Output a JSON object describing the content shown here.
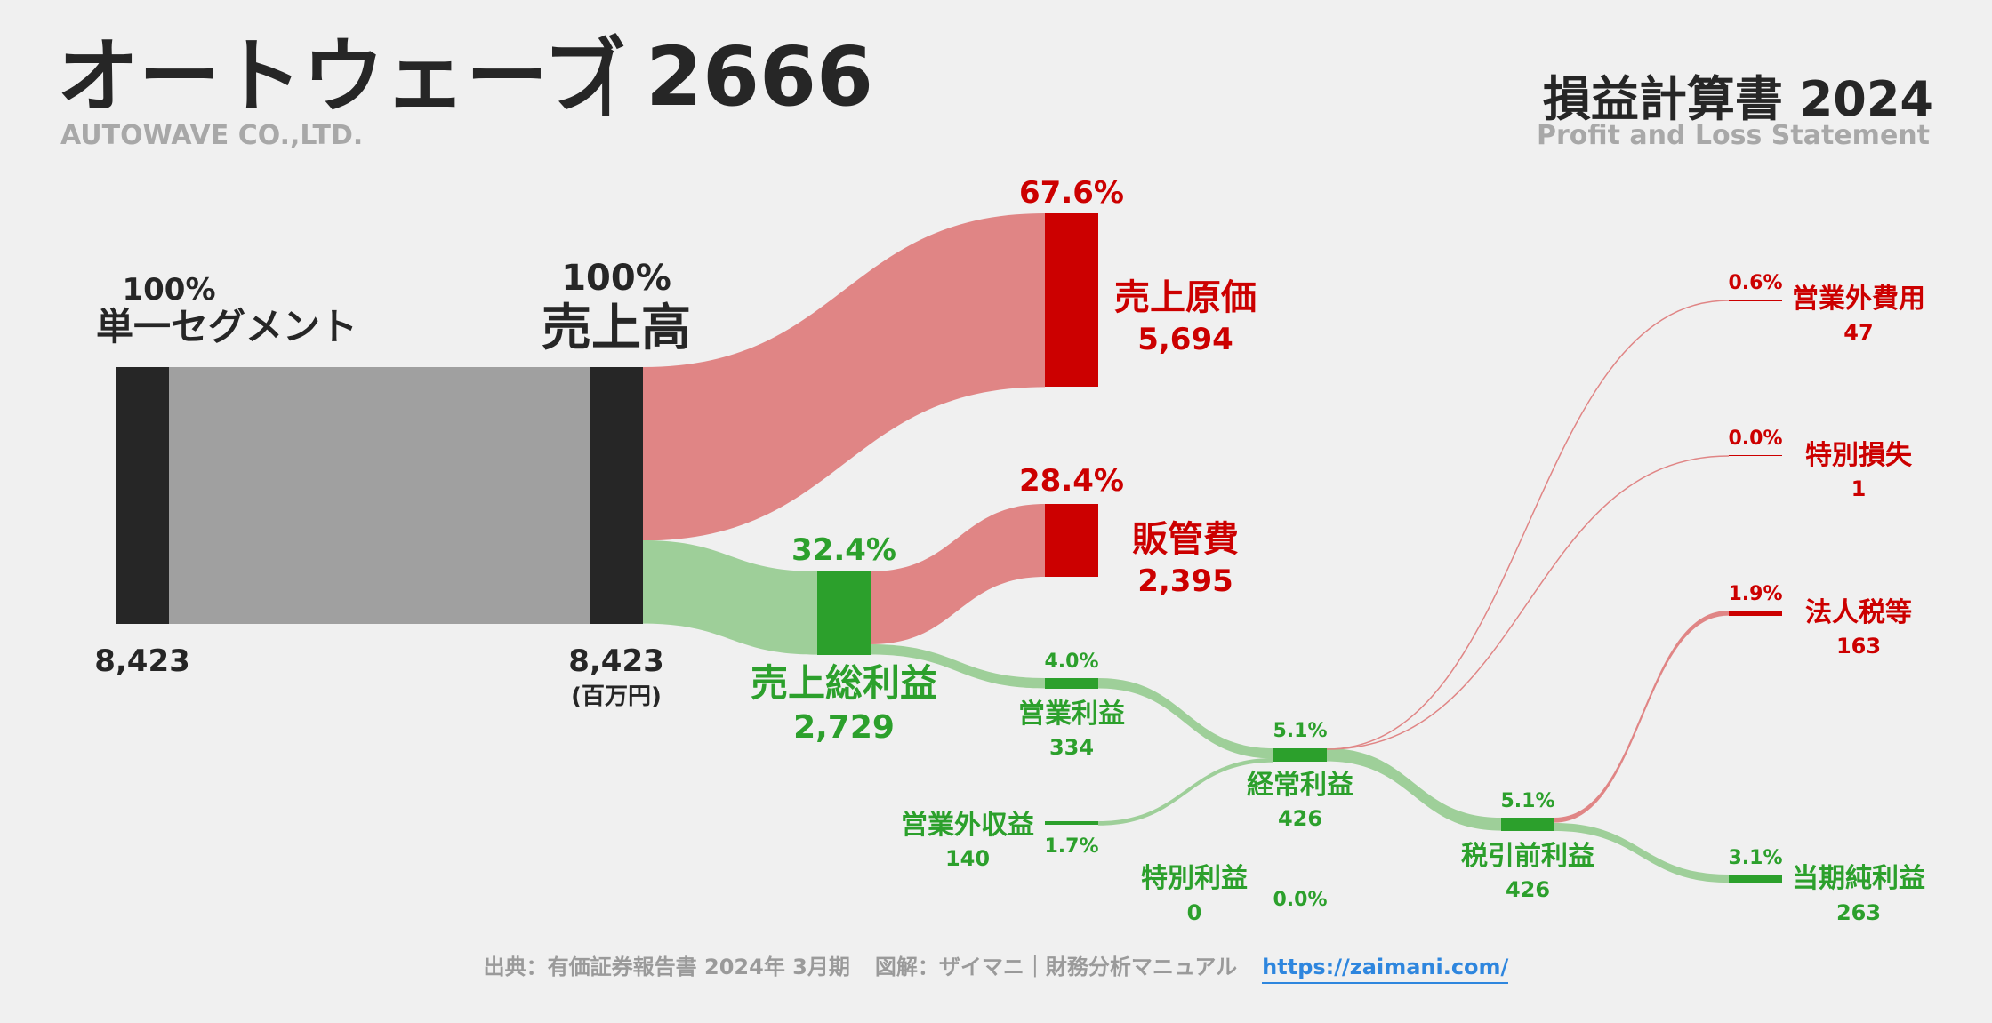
{
  "header": {
    "company_name": "オートウェーブ",
    "separator": "|",
    "ticker": "2666",
    "company_en": "AUTOWAVE CO.,LTD.",
    "statement_title": "損益計算書 2024",
    "statement_en": "Profit and Loss Statement"
  },
  "footer": {
    "source": "出典：有価証券報告書 2024年 3月期",
    "credit": "図解：ザイマニ｜財務分析マニュアル",
    "url": "https://zaimani.com/"
  },
  "colors": {
    "background": "#f0f0f0",
    "dark": "#262626",
    "gray_flow": "#a0a0a0",
    "red": "#cc0000",
    "red_flow": "#e08585",
    "green": "#2ca02c",
    "green_flow": "#9ecf99"
  },
  "chart_data": {
    "type": "sankey",
    "unit": "(百万円)",
    "nodes": [
      {
        "id": "segment",
        "label": "単一セグメント",
        "value": "8,423",
        "pct": "100%"
      },
      {
        "id": "revenue",
        "label": "売上高",
        "value": "8,423",
        "pct": "100%"
      },
      {
        "id": "cogs",
        "label": "売上原価",
        "value": "5,694",
        "pct": "67.6%"
      },
      {
        "id": "gross",
        "label": "売上総利益",
        "value": "2,729",
        "pct": "32.4%"
      },
      {
        "id": "sga",
        "label": "販管費",
        "value": "2,395",
        "pct": "28.4%"
      },
      {
        "id": "op",
        "label": "営業利益",
        "value": "334",
        "pct": "4.0%"
      },
      {
        "id": "nonop_inc",
        "label": "営業外収益",
        "value": "140",
        "pct": "1.7%"
      },
      {
        "id": "nonop_exp",
        "label": "営業外費用",
        "value": "47",
        "pct": "0.6%"
      },
      {
        "id": "ordinary",
        "label": "経常利益",
        "value": "426",
        "pct": "5.1%"
      },
      {
        "id": "ext_gain",
        "label": "特別利益",
        "value": "0",
        "pct": "0.0%"
      },
      {
        "id": "ext_loss",
        "label": "特別損失",
        "value": "1",
        "pct": "0.0%"
      },
      {
        "id": "pretax",
        "label": "税引前利益",
        "value": "426",
        "pct": "5.1%"
      },
      {
        "id": "tax",
        "label": "法人税等",
        "value": "163",
        "pct": "1.9%"
      },
      {
        "id": "net",
        "label": "当期純利益",
        "value": "263",
        "pct": "3.1%"
      }
    ],
    "links": [
      {
        "source": "segment",
        "target": "revenue",
        "value": 8423
      },
      {
        "source": "revenue",
        "target": "cogs",
        "value": 5694
      },
      {
        "source": "revenue",
        "target": "gross",
        "value": 2729
      },
      {
        "source": "gross",
        "target": "sga",
        "value": 2395
      },
      {
        "source": "gross",
        "target": "op",
        "value": 334
      },
      {
        "source": "op",
        "target": "ordinary",
        "value": 334
      },
      {
        "source": "nonop_inc",
        "target": "ordinary",
        "value": 140
      },
      {
        "source": "ordinary",
        "target": "nonop_exp",
        "value": 47
      },
      {
        "source": "ordinary",
        "target": "pretax",
        "value": 426
      },
      {
        "source": "ordinary",
        "target": "ext_loss",
        "value": 1
      },
      {
        "source": "pretax",
        "target": "tax",
        "value": 163
      },
      {
        "source": "pretax",
        "target": "net",
        "value": 263
      }
    ]
  }
}
